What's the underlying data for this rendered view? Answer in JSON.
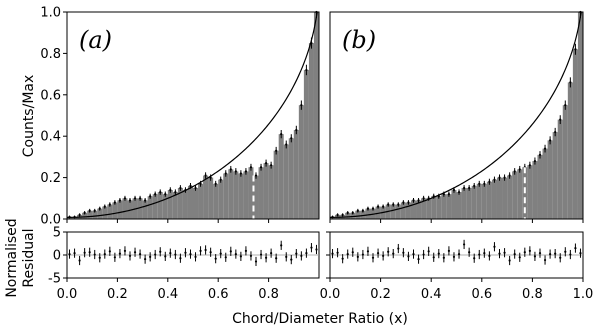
{
  "figure": {
    "xlabel": "Chord/Diameter Ratio (x)",
    "ylabel_top": "Counts/Max",
    "ylabel_bottom_line1": "Normalised",
    "ylabel_bottom_line2": "Residual"
  },
  "chart_data": [
    {
      "type": "bar",
      "panel_label": "(a)",
      "xlabel": "Chord/Diameter Ratio (x)",
      "ylabel": "Counts/Max",
      "xlim": [
        0.0,
        1.0
      ],
      "ylim": [
        0.0,
        1.0
      ],
      "x_ticks": [
        "0.0",
        "0.2",
        "0.4",
        "0.6",
        "0.8"
      ],
      "y_ticks": [
        "0.0",
        "0.2",
        "0.4",
        "0.6",
        "0.8",
        "1.0"
      ],
      "bin_width": 0.02,
      "bin_centers": [
        0.01,
        0.03,
        0.05,
        0.07,
        0.09,
        0.11,
        0.13,
        0.15,
        0.17,
        0.19,
        0.21,
        0.23,
        0.25,
        0.27,
        0.29,
        0.31,
        0.33,
        0.35,
        0.37,
        0.39,
        0.41,
        0.43,
        0.45,
        0.47,
        0.49,
        0.51,
        0.53,
        0.55,
        0.57,
        0.59,
        0.61,
        0.63,
        0.65,
        0.67,
        0.69,
        0.71,
        0.73,
        0.75,
        0.77,
        0.79,
        0.81,
        0.83,
        0.85,
        0.87,
        0.89,
        0.91,
        0.93,
        0.95,
        0.97,
        0.99
      ],
      "counts": [
        0.01,
        0.01,
        0.02,
        0.03,
        0.04,
        0.04,
        0.05,
        0.06,
        0.07,
        0.08,
        0.09,
        0.1,
        0.09,
        0.1,
        0.1,
        0.09,
        0.11,
        0.12,
        0.13,
        0.12,
        0.14,
        0.13,
        0.15,
        0.14,
        0.16,
        0.15,
        0.17,
        0.21,
        0.2,
        0.17,
        0.19,
        0.22,
        0.24,
        0.23,
        0.22,
        0.23,
        0.25,
        0.21,
        0.25,
        0.27,
        0.26,
        0.33,
        0.41,
        0.36,
        0.39,
        0.43,
        0.55,
        0.72,
        0.85,
        1.0
      ],
      "model_curve": "1 - sqrt(1 - x^2) normalised",
      "vline_x": 0.74,
      "residual": {
        "ylim": [
          -5.0,
          5.0
        ],
        "y_ticks": [
          "-5",
          "0",
          "5"
        ],
        "values": [
          0.2,
          0.4,
          -1.2,
          0.5,
          0.6,
          0.1,
          -0.6,
          0.2,
          0.8,
          -0.5,
          0.3,
          0.9,
          -0.2,
          0.6,
          0.2,
          -0.9,
          -0.4,
          0.1,
          0.7,
          -0.3,
          0.4,
          0.1,
          -0.7,
          0.5,
          0.2,
          -0.4,
          0.9,
          1.1,
          0.6,
          -0.8,
          0.3,
          -0.5,
          0.8,
          0.2,
          -0.3,
          0.9,
          -0.2,
          -1.4,
          0.1,
          -0.6,
          0.4,
          -0.7,
          2.1,
          -0.4,
          -1.0,
          0.3,
          -0.2,
          0.4,
          1.6,
          1.2
        ]
      }
    },
    {
      "type": "bar",
      "panel_label": "(b)",
      "xlabel": "Chord/Diameter Ratio (x)",
      "ylabel": "Counts/Max",
      "xlim": [
        0.0,
        1.0
      ],
      "ylim": [
        0.0,
        1.0
      ],
      "x_ticks": [
        "0.0",
        "0.2",
        "0.4",
        "0.6",
        "0.8",
        "1.0"
      ],
      "bin_width": 0.02,
      "bin_centers": [
        0.01,
        0.03,
        0.05,
        0.07,
        0.09,
        0.11,
        0.13,
        0.15,
        0.17,
        0.19,
        0.21,
        0.23,
        0.25,
        0.27,
        0.29,
        0.31,
        0.33,
        0.35,
        0.37,
        0.39,
        0.41,
        0.43,
        0.45,
        0.47,
        0.49,
        0.51,
        0.53,
        0.55,
        0.57,
        0.59,
        0.61,
        0.63,
        0.65,
        0.67,
        0.69,
        0.71,
        0.73,
        0.75,
        0.77,
        0.79,
        0.81,
        0.83,
        0.85,
        0.87,
        0.89,
        0.91,
        0.93,
        0.95,
        0.97,
        0.99
      ],
      "counts": [
        0.01,
        0.02,
        0.02,
        0.03,
        0.03,
        0.04,
        0.04,
        0.05,
        0.05,
        0.06,
        0.06,
        0.07,
        0.07,
        0.07,
        0.08,
        0.08,
        0.09,
        0.09,
        0.1,
        0.1,
        0.11,
        0.11,
        0.12,
        0.12,
        0.14,
        0.13,
        0.15,
        0.15,
        0.16,
        0.17,
        0.17,
        0.18,
        0.19,
        0.2,
        0.2,
        0.21,
        0.23,
        0.24,
        0.25,
        0.26,
        0.28,
        0.31,
        0.34,
        0.38,
        0.42,
        0.48,
        0.55,
        0.66,
        0.82,
        1.0
      ],
      "model_curve": "1 - sqrt(1 - x^2) normalised",
      "vline_x": 0.77,
      "residual": {
        "ylim": [
          -5.0,
          5.0
        ],
        "values": [
          0.3,
          0.5,
          -0.8,
          0.2,
          0.6,
          -0.4,
          0.1,
          0.8,
          -0.6,
          0.4,
          -0.2,
          0.7,
          0.3,
          1.4,
          0.5,
          -0.3,
          0.2,
          -0.9,
          0.1,
          0.8,
          -0.5,
          0.3,
          -0.6,
          0.9,
          -0.4,
          0.2,
          2.3,
          0.6,
          -0.7,
          0.1,
          0.4,
          -0.2,
          1.8,
          0.3,
          0.5,
          -1.2,
          0.2,
          -0.5,
          0.6,
          0.9,
          -0.3,
          0.4,
          -1.1,
          0.2,
          0.3,
          -0.6,
          0.7,
          0.1,
          1.5,
          0.4
        ]
      }
    }
  ]
}
